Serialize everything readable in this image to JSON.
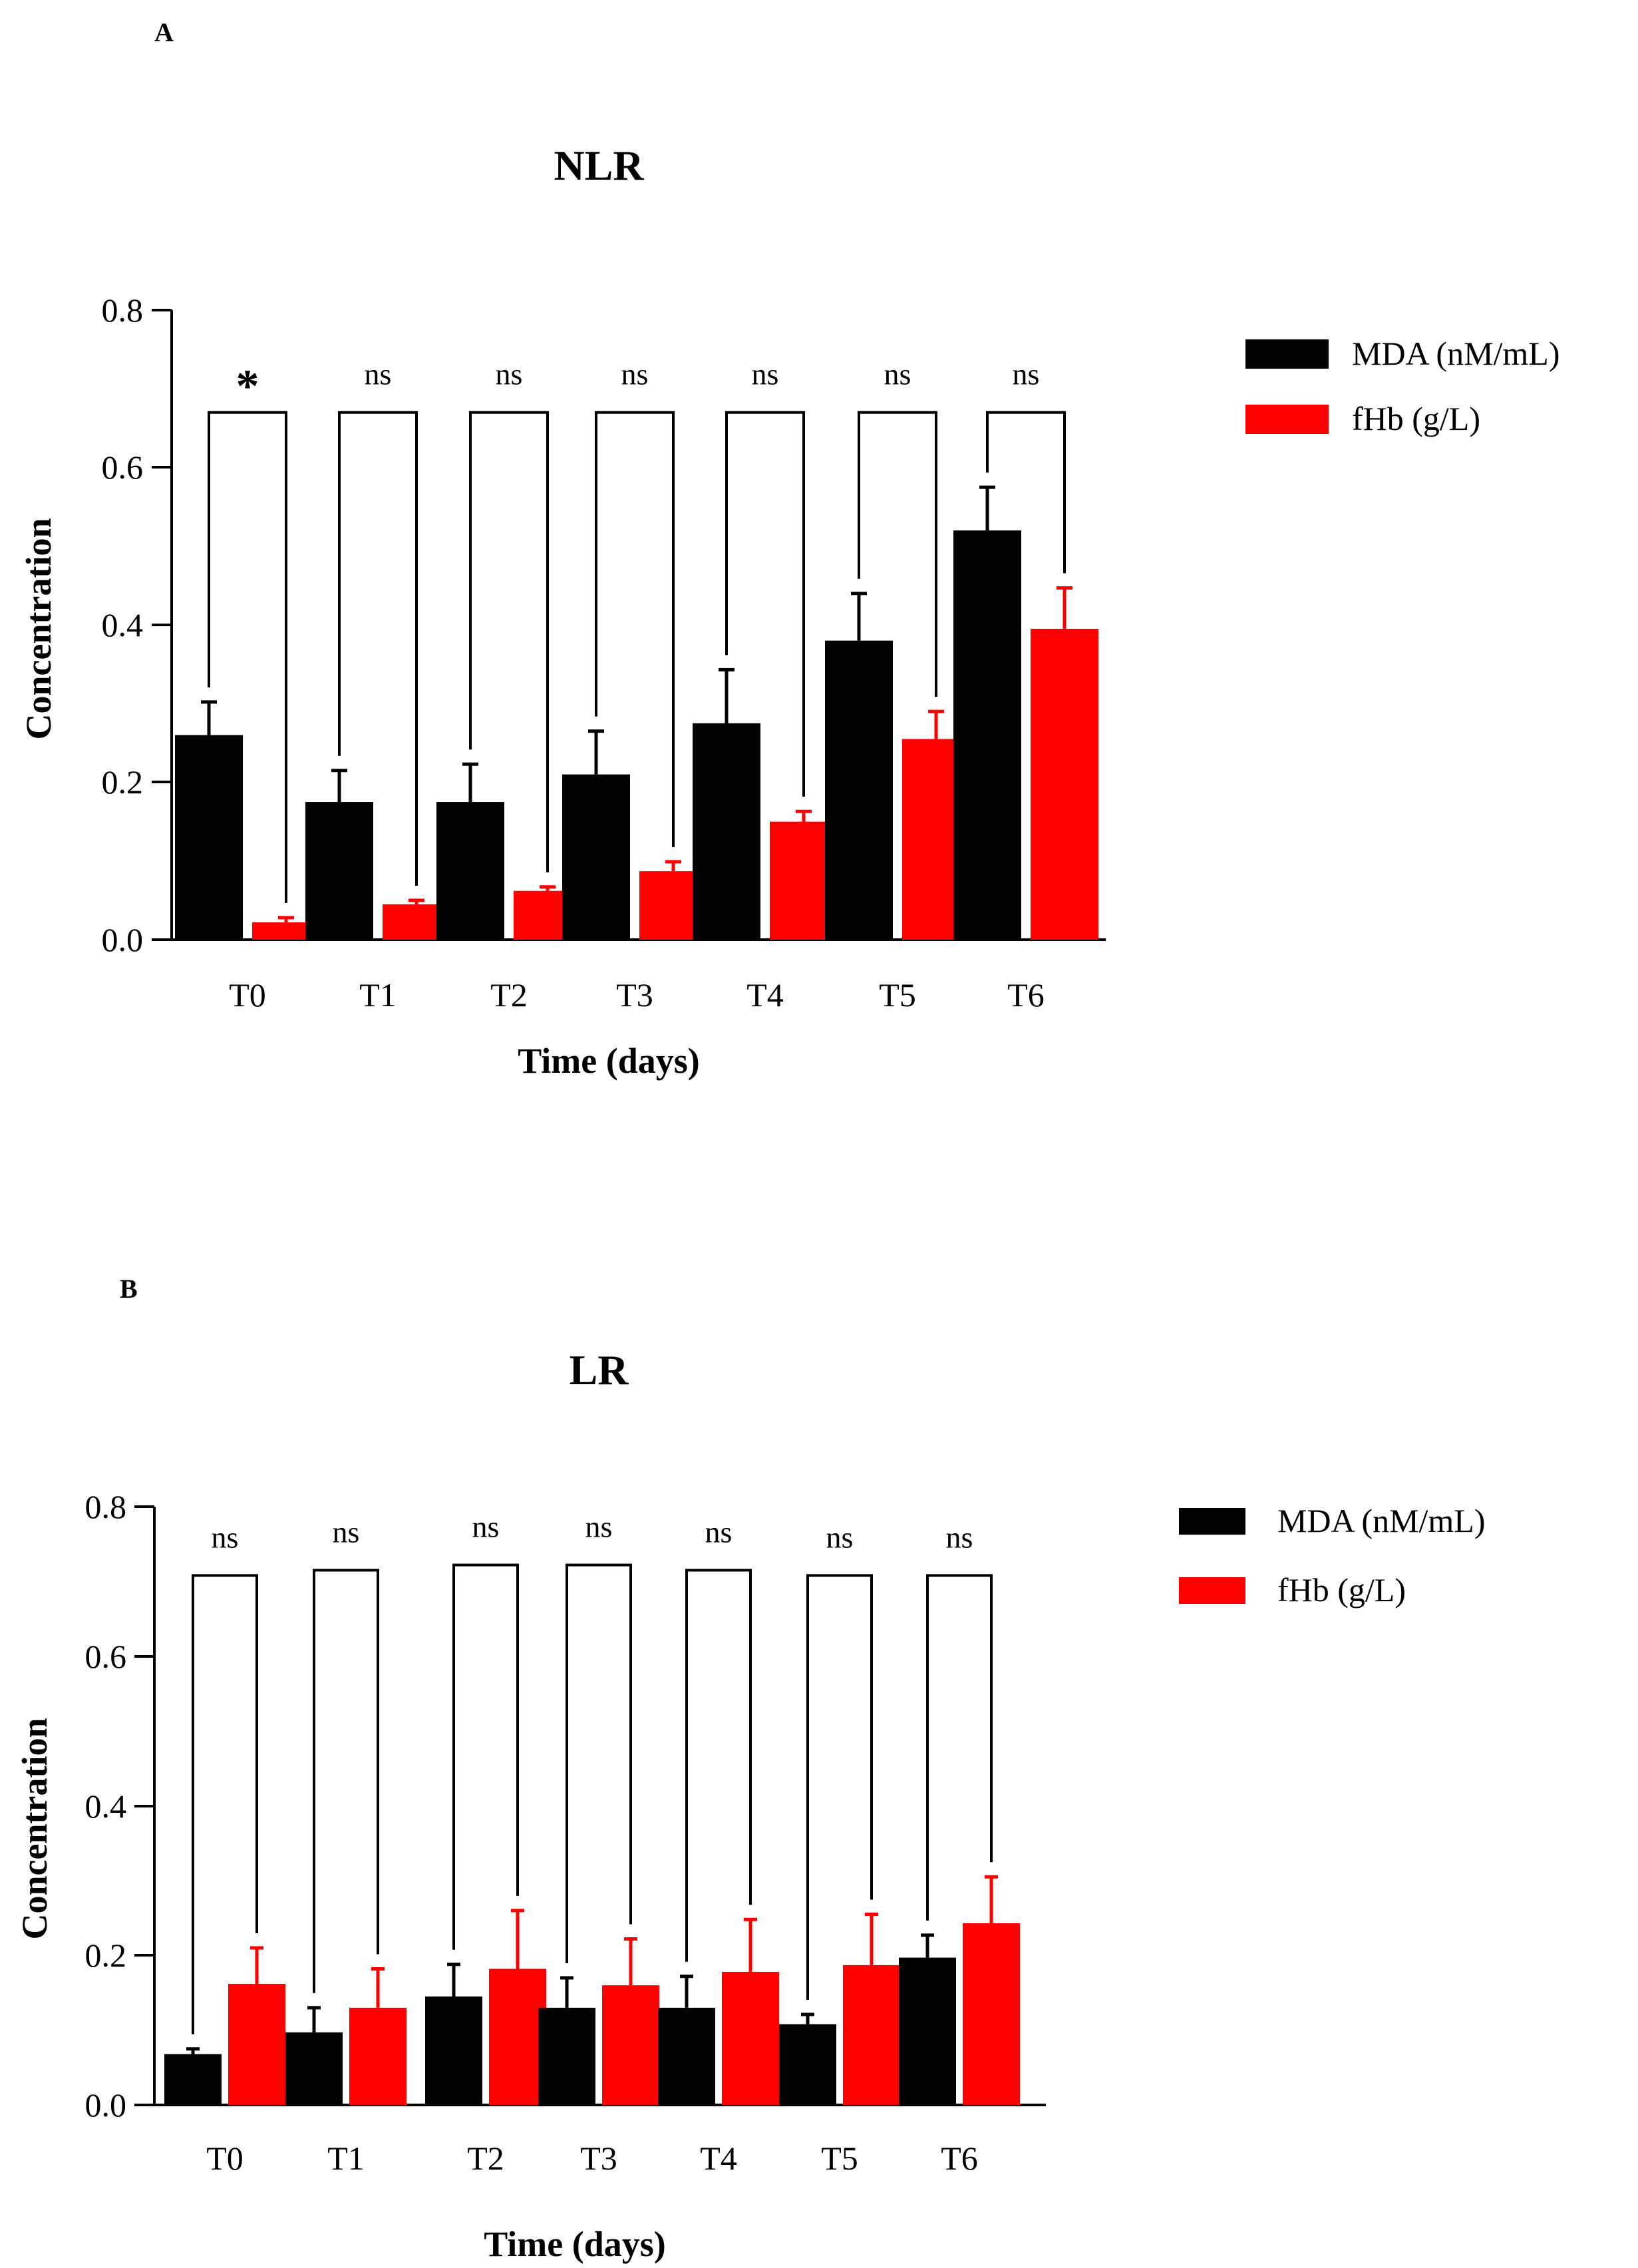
{
  "colors": {
    "mda": "#000000",
    "fhb": "#ff0000",
    "axis": "#000000"
  },
  "chart_data": [
    {
      "type": "bar",
      "panel": "A",
      "title": "NLR",
      "xlabel": "Time (days)",
      "ylabel": "Concentration",
      "ylim": [
        0,
        0.8
      ],
      "yticks": [
        0.0,
        0.2,
        0.4,
        0.6,
        0.8
      ],
      "ytick_labels": [
        "0.0",
        "0.2",
        "0.4",
        "0.6",
        "0.8"
      ],
      "categories": [
        "T0",
        "T1",
        "T2",
        "T3",
        "T4",
        "T5",
        "T6"
      ],
      "series": [
        {
          "name": "MDA (nM/mL)",
          "color": "#000000",
          "values": [
            0.26,
            0.175,
            0.175,
            0.21,
            0.275,
            0.38,
            0.52
          ],
          "errors": [
            0.042,
            0.04,
            0.048,
            0.055,
            0.068,
            0.06,
            0.055
          ]
        },
        {
          "name": "fHb (g/L)",
          "color": "#ff0000",
          "values": [
            0.022,
            0.045,
            0.062,
            0.087,
            0.15,
            0.255,
            0.395
          ],
          "errors": [
            0.006,
            0.005,
            0.005,
            0.012,
            0.013,
            0.035,
            0.052
          ]
        }
      ],
      "significance": [
        "*",
        "ns",
        "ns",
        "ns",
        "ns",
        "ns",
        "ns"
      ],
      "bracket_level": 0.67
    },
    {
      "type": "bar",
      "panel": "B",
      "title": "LR",
      "xlabel": "Time (days)",
      "ylabel": "Concentration",
      "ylim": [
        0,
        0.8
      ],
      "yticks": [
        0.0,
        0.2,
        0.4,
        0.6,
        0.8
      ],
      "ytick_labels": [
        "0.0",
        "0.2",
        "0.4",
        "0.6",
        "0.8"
      ],
      "categories": [
        "T0",
        "T1",
        "T2",
        "T3",
        "T4",
        "T5",
        "T6"
      ],
      "series": [
        {
          "name": "MDA (nM/mL)",
          "color": "#000000",
          "values": [
            0.068,
            0.097,
            0.145,
            0.13,
            0.13,
            0.108,
            0.197
          ],
          "errors": [
            0.007,
            0.033,
            0.043,
            0.04,
            0.042,
            0.013,
            0.03
          ]
        },
        {
          "name": "fHb (g/L)",
          "color": "#ff0000",
          "values": [
            0.162,
            0.13,
            0.182,
            0.16,
            0.178,
            0.187,
            0.243
          ],
          "errors": [
            0.048,
            0.052,
            0.078,
            0.062,
            0.07,
            0.068,
            0.062
          ]
        }
      ],
      "significance": [
        "ns",
        "ns",
        "ns",
        "ns",
        "ns",
        "ns",
        "ns"
      ],
      "bracket_level": [
        0.708,
        0.715,
        0.722,
        0.722,
        0.715,
        0.708,
        0.708
      ]
    }
  ]
}
